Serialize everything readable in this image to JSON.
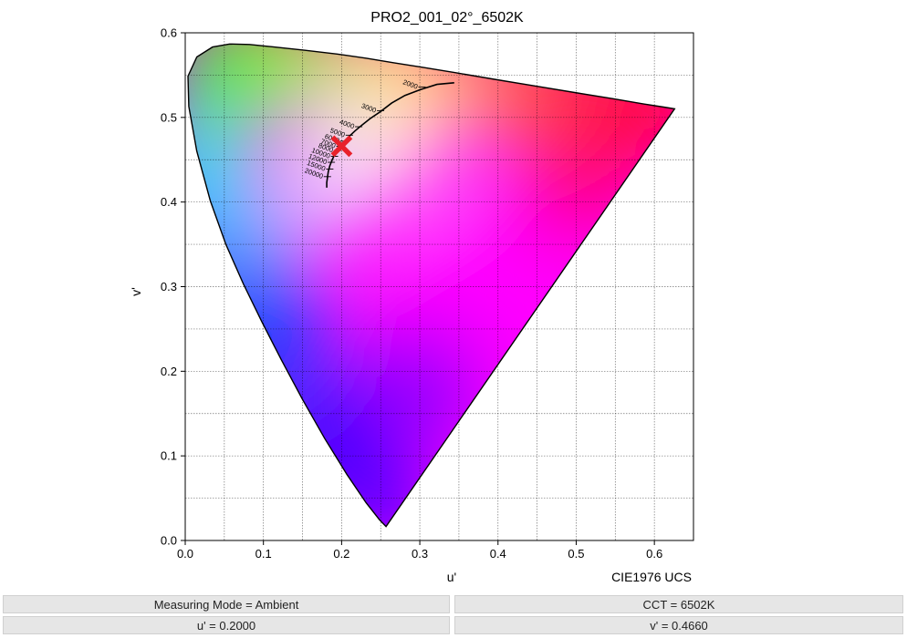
{
  "chart_data": {
    "type": "scatter",
    "title": "PRO2_001_02°_6502K",
    "xlabel": "u'",
    "ylabel": "v'",
    "diagram_name": "CIE1976 UCS",
    "xlim": [
      0.0,
      0.65
    ],
    "ylim": [
      0.0,
      0.6
    ],
    "x_ticks": [
      "0.0",
      "0.1",
      "0.2",
      "0.3",
      "0.4",
      "0.5",
      "0.6"
    ],
    "y_ticks": [
      "0.0",
      "0.1",
      "0.2",
      "0.3",
      "0.4",
      "0.5",
      "0.6"
    ],
    "grid": true,
    "spectral_locus": [
      [
        0.2568,
        0.0165
      ],
      [
        0.2547,
        0.0184
      ],
      [
        0.2485,
        0.0244
      ],
      [
        0.2313,
        0.0446
      ],
      [
        0.2069,
        0.0779
      ],
      [
        0.1784,
        0.1204
      ],
      [
        0.1496,
        0.1673
      ],
      [
        0.1228,
        0.2137
      ],
      [
        0.0979,
        0.2586
      ],
      [
        0.0743,
        0.3032
      ],
      [
        0.052,
        0.3498
      ],
      [
        0.0321,
        0.4014
      ],
      [
        0.0147,
        0.4604
      ],
      [
        0.0045,
        0.5131
      ],
      [
        0.0035,
        0.5487
      ],
      [
        0.0148,
        0.5715
      ],
      [
        0.0349,
        0.5832
      ],
      [
        0.0567,
        0.5868
      ],
      [
        0.0823,
        0.5862
      ],
      [
        0.114,
        0.5832
      ],
      [
        0.1534,
        0.5793
      ],
      [
        0.1943,
        0.5749
      ],
      [
        0.2319,
        0.5699
      ],
      [
        0.267,
        0.5646
      ],
      [
        0.3024,
        0.5594
      ],
      [
        0.3452,
        0.5529
      ],
      [
        0.3954,
        0.5451
      ],
      [
        0.4491,
        0.5369
      ],
      [
        0.5016,
        0.5289
      ],
      [
        0.548,
        0.522
      ],
      [
        0.5853,
        0.5161
      ],
      [
        0.612,
        0.5122
      ],
      [
        0.6259,
        0.5102
      ]
    ],
    "planckian_locus": [
      [
        0.344,
        0.541
      ],
      [
        0.322,
        0.539
      ],
      [
        0.301,
        0.533
      ],
      [
        0.281,
        0.526
      ],
      [
        0.264,
        0.517
      ],
      [
        0.25,
        0.507
      ],
      [
        0.237,
        0.499
      ],
      [
        0.226,
        0.491
      ],
      [
        0.217,
        0.484
      ],
      [
        0.209,
        0.477
      ],
      [
        0.202,
        0.47
      ],
      [
        0.197,
        0.464
      ],
      [
        0.192,
        0.458
      ],
      [
        0.188,
        0.45
      ],
      [
        0.185,
        0.443
      ],
      [
        0.183,
        0.436
      ],
      [
        0.182,
        0.43
      ],
      [
        0.181,
        0.423
      ],
      [
        0.181,
        0.417
      ]
    ],
    "cct_ticks": [
      {
        "label": "2000",
        "u": 0.304,
        "v": 0.536
      },
      {
        "label": "3000",
        "u": 0.251,
        "v": 0.508
      },
      {
        "label": "4000",
        "u": 0.223,
        "v": 0.489
      },
      {
        "label": "5000",
        "u": 0.211,
        "v": 0.479
      },
      {
        "label": "6000",
        "u": 0.204,
        "v": 0.472
      },
      {
        "label": "7000",
        "u": 0.199,
        "v": 0.466
      },
      {
        "label": "8000",
        "u": 0.196,
        "v": 0.461
      },
      {
        "label": "10000",
        "u": 0.192,
        "v": 0.454
      },
      {
        "label": "12000",
        "u": 0.188,
        "v": 0.447
      },
      {
        "label": "15000",
        "u": 0.186,
        "v": 0.439
      },
      {
        "label": "20000",
        "u": 0.183,
        "v": 0.43
      }
    ],
    "measured_point": {
      "u": 0.2,
      "v": 0.466,
      "color": "#e8212b"
    }
  },
  "info": {
    "measuring_mode": "Measuring Mode = Ambient",
    "cct": "CCT = 6502K",
    "u_prime": "u' = 0.2000",
    "v_prime": "v' = 0.4660"
  }
}
